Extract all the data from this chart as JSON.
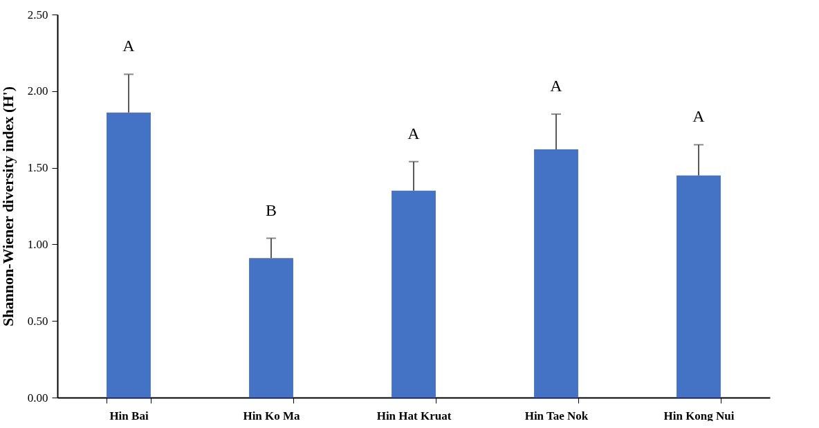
{
  "chart_data": {
    "type": "bar",
    "ylabel": "Shannon-Wiener diversity index (H')",
    "categories": [
      "Hin Bai",
      "Hin Ko Ma",
      "Hin Hat Kruat",
      "Hin Tae Nok",
      "Hin Kong Nui"
    ],
    "values": [
      1.86,
      0.91,
      1.35,
      1.62,
      1.45
    ],
    "errors": [
      [
        1.86,
        2.11
      ],
      [
        0.91,
        1.04
      ],
      [
        1.35,
        1.54
      ],
      [
        1.62,
        1.85
      ],
      [
        1.45,
        1.65
      ]
    ],
    "color": "#4472c4",
    "ylim": [
      0,
      2.5
    ],
    "yticks": [
      {
        "value": 0,
        "label": "0.00"
      },
      {
        "value": 0.5,
        "label": "0.50"
      },
      {
        "value": 1,
        "label": "1.00"
      },
      {
        "value": 1.5,
        "label": "1.50"
      },
      {
        "value": 2,
        "label": "2.00"
      },
      {
        "value": 2.5,
        "label": "2.50"
      }
    ],
    "grid": false,
    "annotations": [
      "A",
      "B",
      "A",
      "A",
      "A"
    ]
  }
}
